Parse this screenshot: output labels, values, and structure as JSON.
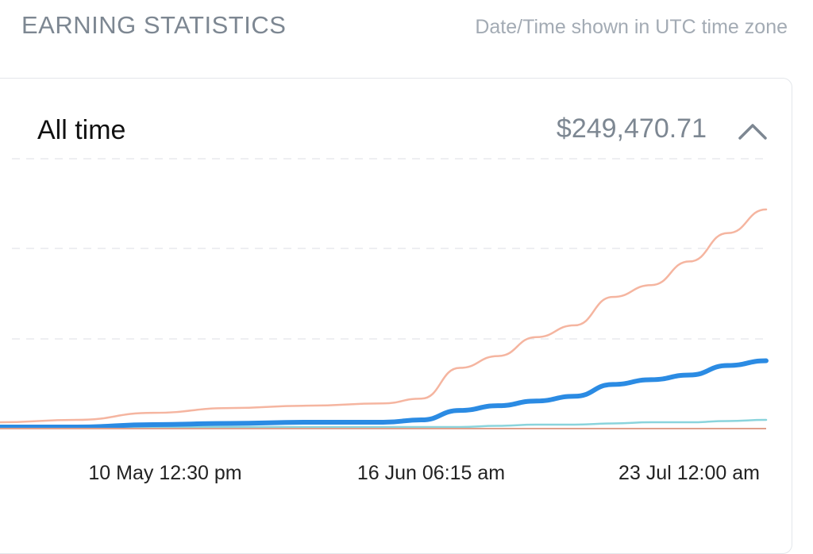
{
  "header": {
    "title": "EARNING STATISTICS",
    "timezone_note": "Date/Time shown in UTC time zone"
  },
  "card": {
    "period_label": "All time",
    "total_amount": "$249,470.71",
    "collapse_icon": "chevron-up-icon"
  },
  "colors": {
    "series_salmon": "#f5b5a0",
    "series_blue": "#2b8be3",
    "series_teal": "#8ad4dc",
    "series_baseline": "#e0a08c",
    "grid": "#e8eaed"
  },
  "chart_data": {
    "type": "line",
    "title": "",
    "xlabel": "",
    "ylabel": "",
    "x_tick_labels": [
      "10 May 12:30 pm",
      "16 Jun 06:15 am",
      "23 Jul 12:00 am"
    ],
    "grid": true,
    "grid_lines": 4,
    "x": [
      0,
      0.1,
      0.2,
      0.3,
      0.4,
      0.5,
      0.55,
      0.6,
      0.65,
      0.7,
      0.75,
      0.8,
      0.85,
      0.9,
      0.95,
      1.0
    ],
    "ylim": [
      0,
      1
    ],
    "series": [
      {
        "color": "#f5b5a0",
        "values": [
          0.02,
          0.03,
          0.06,
          0.08,
          0.09,
          0.1,
          0.12,
          0.25,
          0.3,
          0.38,
          0.43,
          0.55,
          0.6,
          0.7,
          0.82,
          0.92
        ],
        "width": 2.5
      },
      {
        "color": "#2b8be3",
        "values": [
          0.0,
          0.0,
          0.01,
          0.015,
          0.02,
          0.02,
          0.03,
          0.07,
          0.09,
          0.11,
          0.13,
          0.18,
          0.2,
          0.22,
          0.26,
          0.28
        ],
        "width": 6
      },
      {
        "color": "#8ad4dc",
        "values": [
          0.0,
          0.0,
          0.0,
          0.0,
          0.0,
          0.0,
          0.0,
          0.0,
          0.005,
          0.01,
          0.01,
          0.015,
          0.02,
          0.02,
          0.025,
          0.03
        ],
        "width": 2.5
      }
    ]
  }
}
